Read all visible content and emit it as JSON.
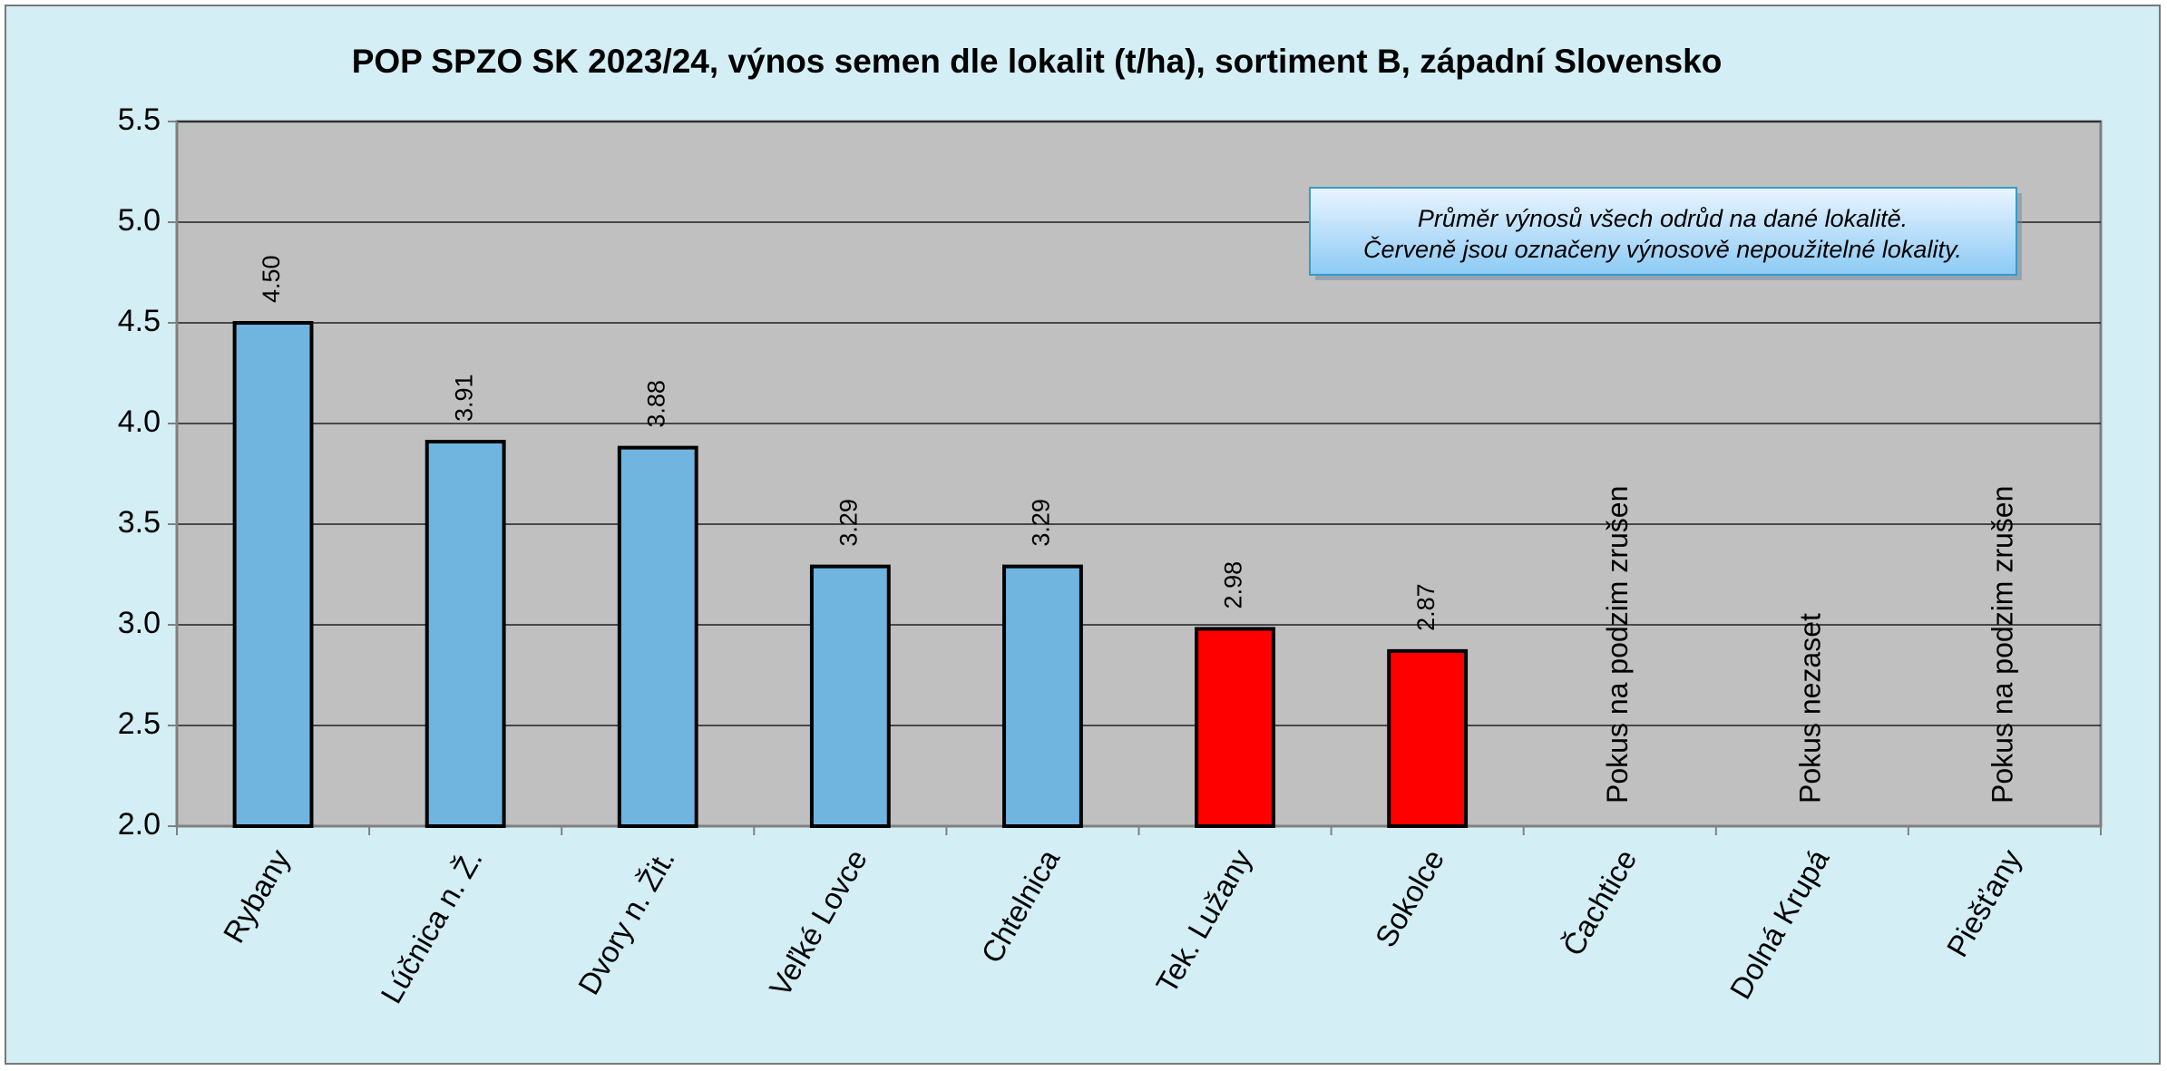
{
  "chart_data": {
    "type": "bar",
    "title": "POP SPZO SK 2023/24, výnos semen dle lokalit (t/ha), sortiment B, západní Slovensko",
    "categories": [
      "Rybany",
      "Lúčnica n. Ž.",
      "Dvory n. Žit.",
      "Veľké Lovce",
      "Chtelnica",
      "Tek. Lužany",
      "Sokolce",
      "Čachtice",
      "Dolná Krupá",
      "Piešťany"
    ],
    "values": [
      4.5,
      3.91,
      3.88,
      3.29,
      3.29,
      2.98,
      2.87,
      null,
      null,
      null
    ],
    "value_labels": [
      "4.50",
      "3.91",
      "3.88",
      "3.29",
      "3.29",
      "2.98",
      "2.87",
      null,
      null,
      null
    ],
    "colors": [
      "#70b4e0",
      "#70b4e0",
      "#70b4e0",
      "#70b4e0",
      "#70b4e0",
      "#ff0000",
      "#ff0000",
      null,
      null,
      null
    ],
    "bar_notes": [
      null,
      null,
      null,
      null,
      null,
      null,
      null,
      "Pokus na podzim zrušen",
      "Pokus nezaset",
      "Pokus na podzim zrušen"
    ],
    "note": [
      "Průměr výnosů všech odrůd na dané lokalitě.",
      "Červeně jsou označeny výnosově nepoužitelné lokality."
    ],
    "ylim": [
      2,
      5.5
    ],
    "yticks": [
      {
        "value": 2,
        "label": "2.0"
      },
      2.5,
      {
        "value": 3,
        "label": "3.0"
      },
      3.5,
      {
        "value": 4,
        "label": "4.0"
      },
      4.5,
      {
        "value": 5,
        "label": "5.0"
      },
      5.5
    ],
    "grid": true
  }
}
